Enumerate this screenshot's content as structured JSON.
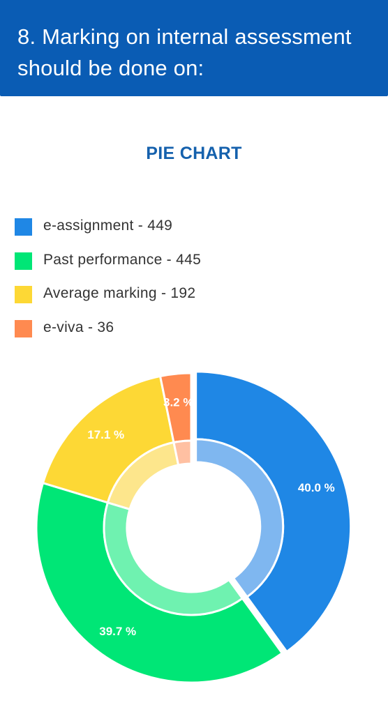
{
  "header": {
    "title": "8. Marking on internal assessment should be done on:"
  },
  "chart_data": {
    "type": "pie",
    "title": "PIE CHART",
    "legend_position": "top-left",
    "categories": [
      "e-assignment",
      "Past performance",
      "Average marking",
      "e-viva"
    ],
    "values": [
      449,
      445,
      192,
      36
    ],
    "legend_labels": [
      "e-assignment - 449",
      "Past performance - 445",
      "Average marking - 192",
      "e-viva - 36"
    ],
    "percent_labels": [
      "40.0 %",
      "39.7 %",
      "17.1 %",
      "3.2 %"
    ],
    "colors": [
      "#1f87e5",
      "#00e676",
      "#fdd835",
      "#ff8a50"
    ],
    "inner_colors": [
      "#7fb7f0",
      "#6ff2b0",
      "#fde68c",
      "#ffc0a2"
    ],
    "exploded_slice": "e-assignment"
  }
}
